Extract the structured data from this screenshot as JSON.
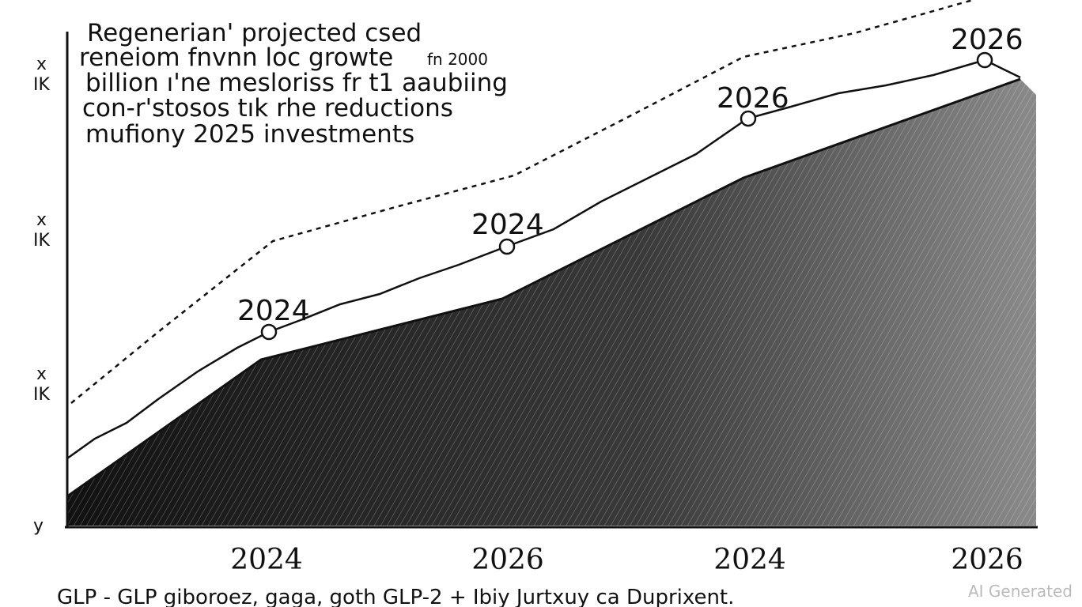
{
  "title_lines": [
    "Regenerian' projected csed",
    "reneiom fnvnn  loc  growte",
    "billion ı'ne mesloriss fr t1 aaubiing",
    "con-r'stosos tık rhe reductions",
    "mufiony 2025 investments"
  ],
  "title_note": "fn 2000",
  "y_axis_labels": [
    {
      "top": "x",
      "bottom": "IK"
    },
    {
      "top": "x",
      "bottom": "IK"
    },
    {
      "top": "x",
      "bottom": "IK"
    }
  ],
  "y_axis_origin": "y",
  "point_labels": [
    "2024",
    "2024",
    "2026",
    "2026"
  ],
  "x_axis_labels": [
    "2024",
    "2026",
    "2024",
    "2026"
  ],
  "footer": "GLP - GLP  giboroez, gaga, goth  GLP-2 + Ibiy Jurtxuy ca Duprixent.",
  "watermark": "AI Generated"
}
